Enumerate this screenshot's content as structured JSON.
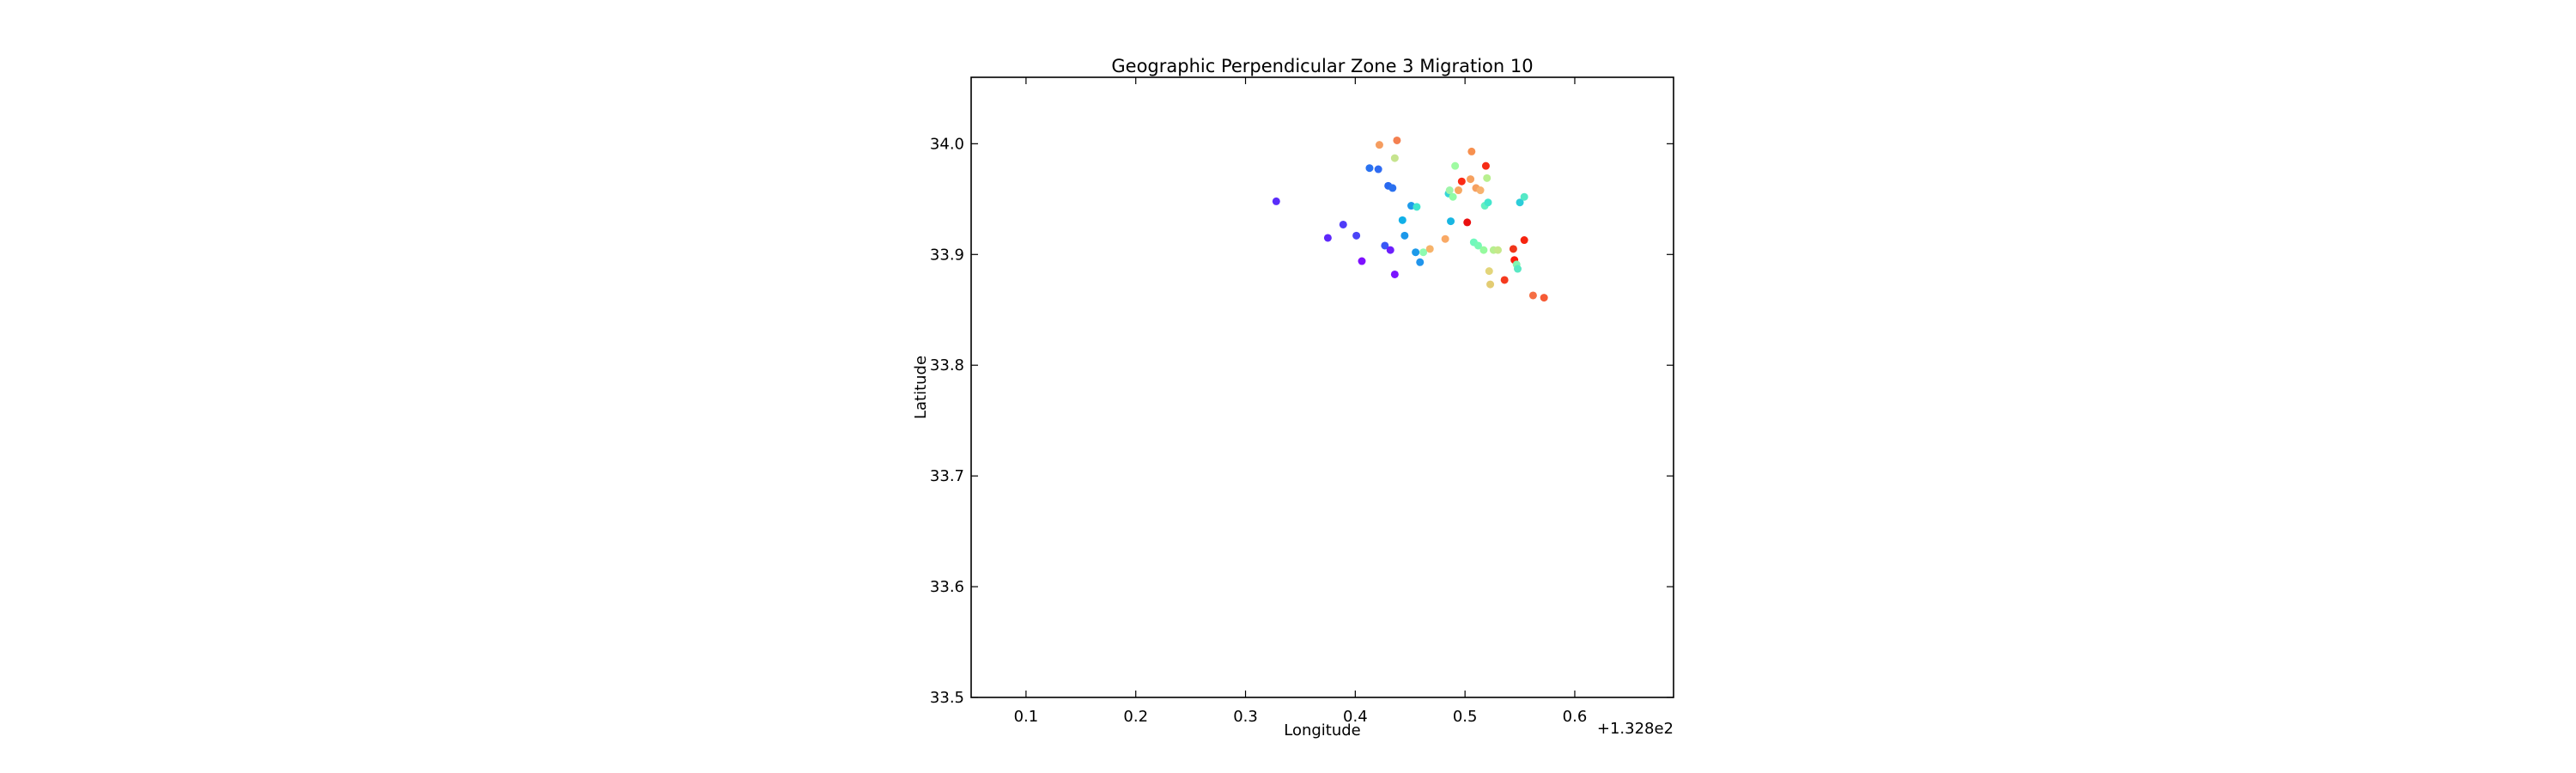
{
  "chart_data": {
    "type": "scatter",
    "title": "Geographic Perpendicular Zone 3 Migration 10",
    "xlabel": "Longitude",
    "ylabel": "Latitude",
    "x_offset_label": "+1.328e2",
    "xlim": [
      0.05,
      0.69
    ],
    "ylim": [
      33.5,
      34.06
    ],
    "xticks": [
      0.1,
      0.2,
      0.3,
      0.4,
      0.5,
      0.6
    ],
    "xtick_labels": [
      "0.1",
      "0.2",
      "0.3",
      "0.4",
      "0.5",
      "0.6"
    ],
    "yticks": [
      33.5,
      33.6,
      33.7,
      33.8,
      33.9,
      34.0
    ],
    "ytick_labels": [
      "33.5",
      "33.6",
      "33.7",
      "33.8",
      "33.9",
      "34.0"
    ],
    "grid": false,
    "legend": "none",
    "colormap": "rainbow",
    "points": [
      {
        "x": 0.328,
        "y": 33.948,
        "color": "#5a2dfa"
      },
      {
        "x": 0.375,
        "y": 33.915,
        "color": "#5e28fb"
      },
      {
        "x": 0.389,
        "y": 33.927,
        "color": "#4f3cf8"
      },
      {
        "x": 0.401,
        "y": 33.917,
        "color": "#4a44f7"
      },
      {
        "x": 0.406,
        "y": 33.894,
        "color": "#7e10ff"
      },
      {
        "x": 0.413,
        "y": 33.978,
        "color": "#2a72f0"
      },
      {
        "x": 0.421,
        "y": 33.977,
        "color": "#2f6bf2"
      },
      {
        "x": 0.427,
        "y": 33.908,
        "color": "#3a58f5"
      },
      {
        "x": 0.43,
        "y": 33.962,
        "color": "#2868f0"
      },
      {
        "x": 0.432,
        "y": 33.904,
        "color": "#6d1ffd"
      },
      {
        "x": 0.434,
        "y": 33.96,
        "color": "#2a70ef"
      },
      {
        "x": 0.436,
        "y": 33.882,
        "color": "#7a14ff"
      },
      {
        "x": 0.443,
        "y": 33.931,
        "color": "#10b0e8"
      },
      {
        "x": 0.445,
        "y": 33.917,
        "color": "#1c98ea"
      },
      {
        "x": 0.451,
        "y": 33.944,
        "color": "#1d9aeb"
      },
      {
        "x": 0.456,
        "y": 33.943,
        "color": "#40e6ce"
      },
      {
        "x": 0.455,
        "y": 33.902,
        "color": "#1d9aea"
      },
      {
        "x": 0.459,
        "y": 33.893,
        "color": "#2195ec"
      },
      {
        "x": 0.462,
        "y": 33.902,
        "color": "#8dfbb0"
      },
      {
        "x": 0.468,
        "y": 33.905,
        "color": "#f6b36a"
      },
      {
        "x": 0.422,
        "y": 33.999,
        "color": "#f59d60"
      },
      {
        "x": 0.436,
        "y": 33.987,
        "color": "#c6e48e"
      },
      {
        "x": 0.438,
        "y": 34.003,
        "color": "#f48050"
      },
      {
        "x": 0.482,
        "y": 33.914,
        "color": "#f9a965"
      },
      {
        "x": 0.485,
        "y": 33.955,
        "color": "#35d7d7"
      },
      {
        "x": 0.486,
        "y": 33.958,
        "color": "#9ff5a9"
      },
      {
        "x": 0.487,
        "y": 33.93,
        "color": "#18b6e2"
      },
      {
        "x": 0.489,
        "y": 33.952,
        "color": "#8ffca6"
      },
      {
        "x": 0.491,
        "y": 33.98,
        "color": "#9ffba2"
      },
      {
        "x": 0.494,
        "y": 33.958,
        "color": "#f7a862"
      },
      {
        "x": 0.497,
        "y": 33.966,
        "color": "#fb2a14"
      },
      {
        "x": 0.502,
        "y": 33.929,
        "color": "#ea0f0f"
      },
      {
        "x": 0.505,
        "y": 33.968,
        "color": "#f6a05e"
      },
      {
        "x": 0.506,
        "y": 33.993,
        "color": "#f7904f"
      },
      {
        "x": 0.508,
        "y": 33.911,
        "color": "#6ff8bd"
      },
      {
        "x": 0.51,
        "y": 33.96,
        "color": "#f6a060"
      },
      {
        "x": 0.512,
        "y": 33.908,
        "color": "#78f9b5"
      },
      {
        "x": 0.514,
        "y": 33.958,
        "color": "#f7b26f"
      },
      {
        "x": 0.517,
        "y": 33.904,
        "color": "#95fa9e"
      },
      {
        "x": 0.518,
        "y": 33.944,
        "color": "#62f0c2"
      },
      {
        "x": 0.519,
        "y": 33.98,
        "color": "#f62c16"
      },
      {
        "x": 0.52,
        "y": 33.969,
        "color": "#b8f08f"
      },
      {
        "x": 0.521,
        "y": 33.947,
        "color": "#44e6cd"
      },
      {
        "x": 0.522,
        "y": 33.885,
        "color": "#e3d57a"
      },
      {
        "x": 0.523,
        "y": 33.873,
        "color": "#e3cc73"
      },
      {
        "x": 0.526,
        "y": 33.904,
        "color": "#b7ef90"
      },
      {
        "x": 0.53,
        "y": 33.904,
        "color": "#c6e88a"
      },
      {
        "x": 0.536,
        "y": 33.877,
        "color": "#f53a1e"
      },
      {
        "x": 0.544,
        "y": 33.905,
        "color": "#f0361a"
      },
      {
        "x": 0.545,
        "y": 33.895,
        "color": "#fc1b0c"
      },
      {
        "x": 0.547,
        "y": 33.891,
        "color": "#82f6b2"
      },
      {
        "x": 0.548,
        "y": 33.887,
        "color": "#5ae8c4"
      },
      {
        "x": 0.55,
        "y": 33.947,
        "color": "#2ccdd9"
      },
      {
        "x": 0.554,
        "y": 33.952,
        "color": "#54e9c6"
      },
      {
        "x": 0.554,
        "y": 33.913,
        "color": "#f6240f"
      },
      {
        "x": 0.562,
        "y": 33.863,
        "color": "#f56e44"
      },
      {
        "x": 0.572,
        "y": 33.861,
        "color": "#f65a35"
      }
    ]
  }
}
